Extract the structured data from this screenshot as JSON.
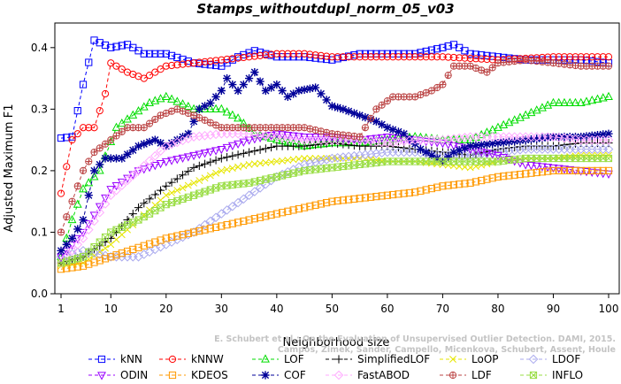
{
  "chart_data": {
    "type": "line",
    "title": "Stamps_withoutdupl_norm_05_v03",
    "xlabel": "Neighborhood size",
    "ylabel": "Adjusted Maximum F1",
    "xlim": [
      1,
      100
    ],
    "ylim": [
      0,
      0.44
    ],
    "x_ticks": [
      1,
      10,
      20,
      30,
      40,
      50,
      60,
      70,
      80,
      90,
      100
    ],
    "y_ticks": [
      0.0,
      0.1,
      0.2,
      0.3,
      0.4
    ],
    "y_tick_labels": [
      "0.0",
      "0.1",
      "0.2",
      "0.3",
      "0.4"
    ],
    "grid": false,
    "legend_position": "bottom",
    "series": [
      {
        "name": "kNN",
        "color": "#0000ff",
        "marker": "square",
        "points": [
          [
            1,
            0.253
          ],
          [
            3,
            0.255
          ],
          [
            5,
            0.34
          ],
          [
            7,
            0.412
          ],
          [
            10,
            0.4
          ],
          [
            13,
            0.405
          ],
          [
            16,
            0.39
          ],
          [
            20,
            0.39
          ],
          [
            25,
            0.375
          ],
          [
            30,
            0.37
          ],
          [
            33,
            0.385
          ],
          [
            36,
            0.395
          ],
          [
            40,
            0.385
          ],
          [
            45,
            0.385
          ],
          [
            50,
            0.38
          ],
          [
            55,
            0.39
          ],
          [
            60,
            0.39
          ],
          [
            65,
            0.39
          ],
          [
            70,
            0.4
          ],
          [
            72,
            0.405
          ],
          [
            75,
            0.39
          ],
          [
            80,
            0.385
          ],
          [
            85,
            0.38
          ],
          [
            90,
            0.38
          ],
          [
            95,
            0.38
          ],
          [
            100,
            0.375
          ]
        ]
      },
      {
        "name": "kNNW",
        "color": "#ff0000",
        "marker": "circle",
        "points": [
          [
            1,
            0.163
          ],
          [
            3,
            0.25
          ],
          [
            5,
            0.27
          ],
          [
            7,
            0.27
          ],
          [
            9,
            0.325
          ],
          [
            10,
            0.375
          ],
          [
            13,
            0.36
          ],
          [
            16,
            0.35
          ],
          [
            20,
            0.37
          ],
          [
            25,
            0.375
          ],
          [
            30,
            0.38
          ],
          [
            35,
            0.385
          ],
          [
            40,
            0.39
          ],
          [
            45,
            0.39
          ],
          [
            50,
            0.385
          ],
          [
            60,
            0.385
          ],
          [
            70,
            0.385
          ],
          [
            80,
            0.38
          ],
          [
            90,
            0.385
          ],
          [
            100,
            0.385
          ]
        ]
      },
      {
        "name": "LOF",
        "color": "#00dd00",
        "marker": "triangle-up",
        "points": [
          [
            1,
            0.06
          ],
          [
            3,
            0.12
          ],
          [
            5,
            0.17
          ],
          [
            8,
            0.2
          ],
          [
            11,
            0.27
          ],
          [
            14,
            0.29
          ],
          [
            17,
            0.31
          ],
          [
            20,
            0.32
          ],
          [
            25,
            0.3
          ],
          [
            30,
            0.3
          ],
          [
            33,
            0.285
          ],
          [
            36,
            0.26
          ],
          [
            40,
            0.25
          ],
          [
            45,
            0.24
          ],
          [
            50,
            0.245
          ],
          [
            55,
            0.245
          ],
          [
            60,
            0.25
          ],
          [
            65,
            0.255
          ],
          [
            70,
            0.25
          ],
          [
            75,
            0.25
          ],
          [
            80,
            0.27
          ],
          [
            85,
            0.29
          ],
          [
            90,
            0.31
          ],
          [
            95,
            0.31
          ],
          [
            100,
            0.32
          ]
        ]
      },
      {
        "name": "SimplifiedLOF",
        "color": "#000000",
        "marker": "plus",
        "points": [
          [
            1,
            0.05
          ],
          [
            5,
            0.06
          ],
          [
            10,
            0.09
          ],
          [
            15,
            0.14
          ],
          [
            20,
            0.175
          ],
          [
            25,
            0.205
          ],
          [
            30,
            0.22
          ],
          [
            35,
            0.23
          ],
          [
            40,
            0.24
          ],
          [
            45,
            0.24
          ],
          [
            50,
            0.245
          ],
          [
            55,
            0.24
          ],
          [
            60,
            0.24
          ],
          [
            65,
            0.235
          ],
          [
            70,
            0.23
          ],
          [
            75,
            0.225
          ],
          [
            80,
            0.235
          ],
          [
            85,
            0.24
          ],
          [
            90,
            0.24
          ],
          [
            95,
            0.245
          ],
          [
            100,
            0.245
          ]
        ]
      },
      {
        "name": "LoOP",
        "color": "#e6e600",
        "marker": "x",
        "points": [
          [
            1,
            0.045
          ],
          [
            5,
            0.05
          ],
          [
            10,
            0.08
          ],
          [
            15,
            0.12
          ],
          [
            20,
            0.16
          ],
          [
            25,
            0.18
          ],
          [
            30,
            0.2
          ],
          [
            35,
            0.21
          ],
          [
            40,
            0.215
          ],
          [
            45,
            0.22
          ],
          [
            50,
            0.22
          ],
          [
            55,
            0.22
          ],
          [
            60,
            0.215
          ],
          [
            65,
            0.215
          ],
          [
            70,
            0.21
          ],
          [
            75,
            0.205
          ],
          [
            80,
            0.215
          ],
          [
            85,
            0.22
          ],
          [
            90,
            0.22
          ],
          [
            95,
            0.225
          ],
          [
            100,
            0.225
          ]
        ]
      },
      {
        "name": "LDOF",
        "color": "#aaaaee",
        "marker": "diamond",
        "points": [
          [
            1,
            0.06
          ],
          [
            5,
            0.07
          ],
          [
            10,
            0.06
          ],
          [
            15,
            0.06
          ],
          [
            20,
            0.08
          ],
          [
            25,
            0.1
          ],
          [
            30,
            0.13
          ],
          [
            35,
            0.16
          ],
          [
            40,
            0.19
          ],
          [
            45,
            0.21
          ],
          [
            50,
            0.22
          ],
          [
            55,
            0.225
          ],
          [
            60,
            0.23
          ],
          [
            65,
            0.23
          ],
          [
            70,
            0.225
          ],
          [
            75,
            0.225
          ],
          [
            80,
            0.23
          ],
          [
            85,
            0.235
          ],
          [
            90,
            0.235
          ],
          [
            95,
            0.235
          ],
          [
            100,
            0.235
          ]
        ]
      },
      {
        "name": "ODIN",
        "color": "#9900ff",
        "marker": "triangle-down",
        "points": [
          [
            1,
            0.06
          ],
          [
            5,
            0.1
          ],
          [
            10,
            0.17
          ],
          [
            15,
            0.2
          ],
          [
            20,
            0.215
          ],
          [
            25,
            0.225
          ],
          [
            30,
            0.235
          ],
          [
            35,
            0.25
          ],
          [
            40,
            0.26
          ],
          [
            45,
            0.255
          ],
          [
            50,
            0.255
          ],
          [
            55,
            0.25
          ],
          [
            60,
            0.255
          ],
          [
            65,
            0.25
          ],
          [
            70,
            0.245
          ],
          [
            75,
            0.235
          ],
          [
            80,
            0.225
          ],
          [
            85,
            0.21
          ],
          [
            90,
            0.205
          ],
          [
            95,
            0.2
          ],
          [
            100,
            0.195
          ]
        ]
      },
      {
        "name": "KDEOS",
        "color": "#ff9900",
        "marker": "square",
        "points": [
          [
            1,
            0.04
          ],
          [
            5,
            0.045
          ],
          [
            10,
            0.06
          ],
          [
            15,
            0.075
          ],
          [
            20,
            0.09
          ],
          [
            25,
            0.1
          ],
          [
            30,
            0.11
          ],
          [
            35,
            0.12
          ],
          [
            40,
            0.13
          ],
          [
            45,
            0.14
          ],
          [
            50,
            0.15
          ],
          [
            55,
            0.155
          ],
          [
            60,
            0.16
          ],
          [
            65,
            0.165
          ],
          [
            70,
            0.175
          ],
          [
            75,
            0.18
          ],
          [
            80,
            0.19
          ],
          [
            85,
            0.195
          ],
          [
            90,
            0.2
          ],
          [
            95,
            0.2
          ],
          [
            100,
            0.2
          ]
        ]
      },
      {
        "name": "COF",
        "color": "#000099",
        "marker": "asterisk",
        "points": [
          [
            1,
            0.07
          ],
          [
            3,
            0.09
          ],
          [
            5,
            0.12
          ],
          [
            7,
            0.2
          ],
          [
            9,
            0.22
          ],
          [
            12,
            0.22
          ],
          [
            15,
            0.24
          ],
          [
            18,
            0.25
          ],
          [
            20,
            0.24
          ],
          [
            22,
            0.25
          ],
          [
            24,
            0.26
          ],
          [
            26,
            0.3
          ],
          [
            28,
            0.31
          ],
          [
            30,
            0.33
          ],
          [
            31,
            0.35
          ],
          [
            33,
            0.33
          ],
          [
            36,
            0.36
          ],
          [
            38,
            0.33
          ],
          [
            40,
            0.34
          ],
          [
            42,
            0.32
          ],
          [
            44,
            0.33
          ],
          [
            47,
            0.335
          ],
          [
            50,
            0.305
          ],
          [
            52,
            0.3
          ],
          [
            55,
            0.29
          ],
          [
            58,
            0.28
          ],
          [
            60,
            0.27
          ],
          [
            63,
            0.26
          ],
          [
            66,
            0.235
          ],
          [
            70,
            0.215
          ],
          [
            72,
            0.23
          ],
          [
            75,
            0.24
          ],
          [
            80,
            0.245
          ],
          [
            85,
            0.25
          ],
          [
            90,
            0.255
          ],
          [
            95,
            0.255
          ],
          [
            100,
            0.26
          ]
        ]
      },
      {
        "name": "FastABOD",
        "color": "#ffaaff",
        "marker": "diamond",
        "points": [
          [
            1,
            0.05
          ],
          [
            5,
            0.09
          ],
          [
            10,
            0.16
          ],
          [
            15,
            0.2
          ],
          [
            20,
            0.24
          ],
          [
            25,
            0.255
          ],
          [
            30,
            0.26
          ],
          [
            35,
            0.26
          ],
          [
            40,
            0.255
          ],
          [
            45,
            0.25
          ],
          [
            50,
            0.25
          ],
          [
            55,
            0.25
          ],
          [
            60,
            0.245
          ],
          [
            65,
            0.25
          ],
          [
            70,
            0.25
          ],
          [
            75,
            0.255
          ],
          [
            80,
            0.255
          ],
          [
            85,
            0.255
          ],
          [
            90,
            0.255
          ],
          [
            95,
            0.25
          ],
          [
            100,
            0.25
          ]
        ]
      },
      {
        "name": "LDF",
        "color": "#bb4444",
        "marker": "circle-plus",
        "points": [
          [
            1,
            0.1
          ],
          [
            3,
            0.15
          ],
          [
            5,
            0.2
          ],
          [
            7,
            0.23
          ],
          [
            10,
            0.25
          ],
          [
            13,
            0.27
          ],
          [
            16,
            0.27
          ],
          [
            19,
            0.29
          ],
          [
            22,
            0.3
          ],
          [
            25,
            0.29
          ],
          [
            30,
            0.27
          ],
          [
            35,
            0.27
          ],
          [
            40,
            0.27
          ],
          [
            45,
            0.27
          ],
          [
            50,
            0.26
          ],
          [
            55,
            0.255
          ],
          [
            58,
            0.3
          ],
          [
            61,
            0.32
          ],
          [
            65,
            0.32
          ],
          [
            68,
            0.33
          ],
          [
            70,
            0.34
          ],
          [
            72,
            0.37
          ],
          [
            75,
            0.37
          ],
          [
            78,
            0.36
          ],
          [
            80,
            0.375
          ],
          [
            85,
            0.38
          ],
          [
            90,
            0.375
          ],
          [
            95,
            0.37
          ],
          [
            100,
            0.37
          ]
        ]
      },
      {
        "name": "INFLO",
        "color": "#99dd44",
        "marker": "star",
        "points": [
          [
            1,
            0.05
          ],
          [
            5,
            0.06
          ],
          [
            10,
            0.1
          ],
          [
            15,
            0.12
          ],
          [
            20,
            0.145
          ],
          [
            25,
            0.16
          ],
          [
            30,
            0.175
          ],
          [
            35,
            0.18
          ],
          [
            40,
            0.19
          ],
          [
            45,
            0.2
          ],
          [
            50,
            0.205
          ],
          [
            55,
            0.21
          ],
          [
            60,
            0.215
          ],
          [
            65,
            0.215
          ],
          [
            70,
            0.215
          ],
          [
            75,
            0.215
          ],
          [
            80,
            0.215
          ],
          [
            85,
            0.22
          ],
          [
            90,
            0.22
          ],
          [
            95,
            0.22
          ],
          [
            100,
            0.22
          ]
        ]
      }
    ]
  },
  "watermark": {
    "line1": "E. Schubert et al.: On the Evaluation of Unsupervised Outlier Detection. DAMI, 2015.",
    "line2": "Campos, Zimek, Sander, Campello, Micenkova, Schubert, Assent, Houle"
  }
}
